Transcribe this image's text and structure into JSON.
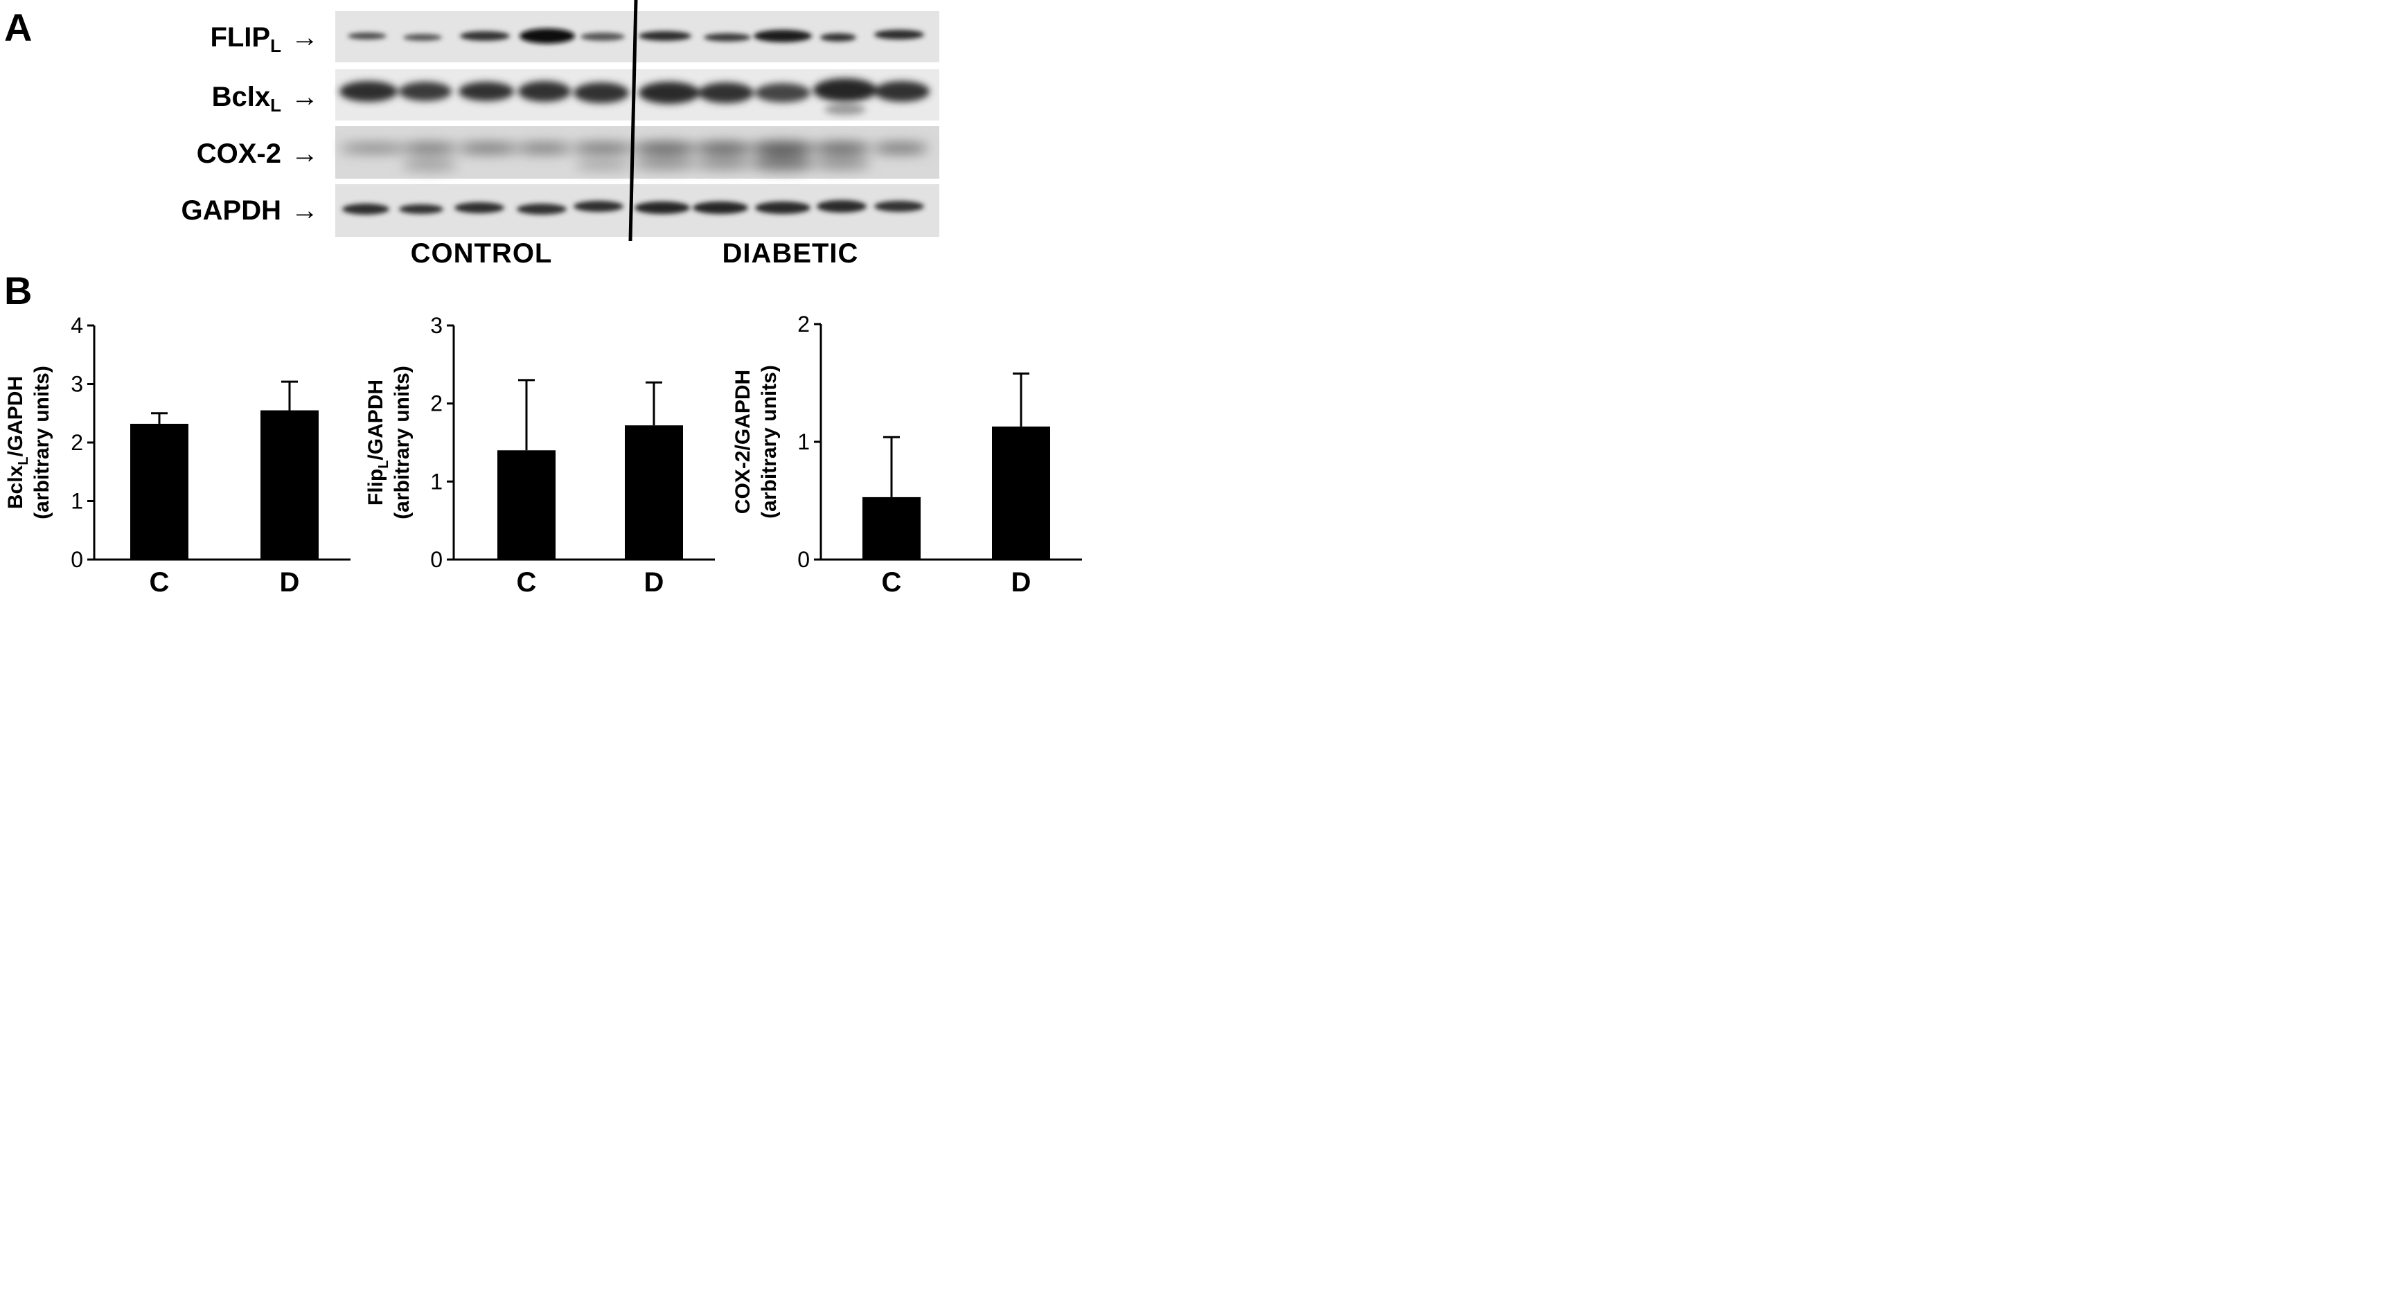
{
  "panel_a": {
    "letter": "A",
    "blot_rows": [
      {
        "main": "FLIP",
        "sub": "L"
      },
      {
        "main": "Bclx",
        "sub": "L"
      },
      {
        "main": "COX-2",
        "sub": ""
      },
      {
        "main": "GAPDH",
        "sub": ""
      }
    ],
    "arrow": "→",
    "groups": [
      "CONTROL",
      "DIABETIC"
    ]
  },
  "panel_b": {
    "letter": "B"
  },
  "chart_data": [
    {
      "type": "bar",
      "categories": [
        "C",
        "D"
      ],
      "values": [
        2.32,
        2.55
      ],
      "errors": [
        0.18,
        0.49
      ],
      "ylabel_main": "Bclx",
      "ylabel_sub": "L",
      "ylabel_rest": "/GAPDH",
      "ylabel_line2": "(arbitrary units)",
      "ylim": [
        0,
        4
      ],
      "yticks": [
        "0",
        "1",
        "2",
        "3",
        "4"
      ],
      "bar_color": "#000000"
    },
    {
      "type": "bar",
      "categories": [
        "C",
        "D"
      ],
      "values": [
        1.4,
        1.72
      ],
      "errors": [
        0.9,
        0.55
      ],
      "ylabel_main": "Flip",
      "ylabel_sub": "L",
      "ylabel_rest": "/GAPDH",
      "ylabel_line2": "(arbitrary units)",
      "ylim": [
        0,
        3
      ],
      "yticks": [
        "0",
        "1",
        "2",
        "3"
      ],
      "bar_color": "#000000"
    },
    {
      "type": "bar",
      "categories": [
        "C",
        "D"
      ],
      "values": [
        0.53,
        1.13
      ],
      "errors": [
        0.51,
        0.45
      ],
      "ylabel_main": "COX-2/GAPDH",
      "ylabel_sub": "",
      "ylabel_rest": "",
      "ylabel_line2": "(arbitrary units)",
      "ylim": [
        0,
        2
      ],
      "yticks": [
        "0",
        "1",
        "2"
      ],
      "bar_color": "#000000"
    }
  ]
}
